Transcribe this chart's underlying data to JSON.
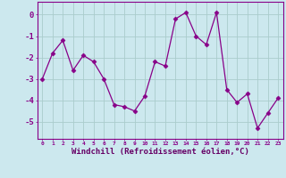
{
  "x": [
    0,
    1,
    2,
    3,
    4,
    5,
    6,
    7,
    8,
    9,
    10,
    11,
    12,
    13,
    14,
    15,
    16,
    17,
    18,
    19,
    20,
    21,
    22,
    23
  ],
  "y": [
    -3.0,
    -1.8,
    -1.2,
    -2.6,
    -1.9,
    -2.2,
    -3.0,
    -4.2,
    -4.3,
    -4.5,
    -3.8,
    -2.2,
    -2.4,
    -0.2,
    0.1,
    -1.0,
    -1.4,
    0.1,
    -3.5,
    -4.1,
    -3.7,
    -5.3,
    -4.6,
    -3.9
  ],
  "line_color": "#880088",
  "marker": "D",
  "marker_size": 2.5,
  "bg_color": "#cce8ee",
  "grid_color": "#aacccc",
  "xlabel": "Windchill (Refroidissement éolien,°C)",
  "xlabel_color": "#660066",
  "tick_color": "#880088",
  "ylabel_ticks": [
    0,
    -1,
    -2,
    -3,
    -4,
    -5
  ],
  "xtick_labels": [
    "0",
    "1",
    "2",
    "3",
    "4",
    "5",
    "6",
    "7",
    "8",
    "9",
    "10",
    "11",
    "12",
    "13",
    "14",
    "15",
    "16",
    "17",
    "18",
    "19",
    "20",
    "21",
    "22",
    "23"
  ],
  "ylim": [
    -5.8,
    0.6
  ],
  "xlim": [
    -0.5,
    23.5
  ],
  "spine_color": "#880088"
}
